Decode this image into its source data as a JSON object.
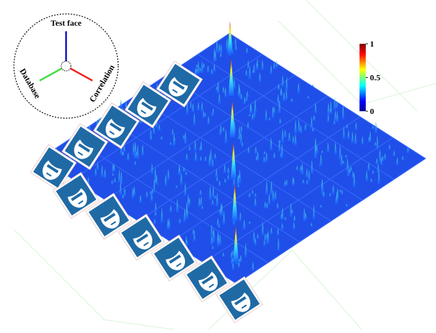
{
  "inset": {
    "test_axis": "Test face",
    "database_axis": "Database",
    "correlation_axis": "Correlation"
  },
  "colorbar": {
    "ticks": [
      1,
      0.5,
      0
    ]
  }
}
